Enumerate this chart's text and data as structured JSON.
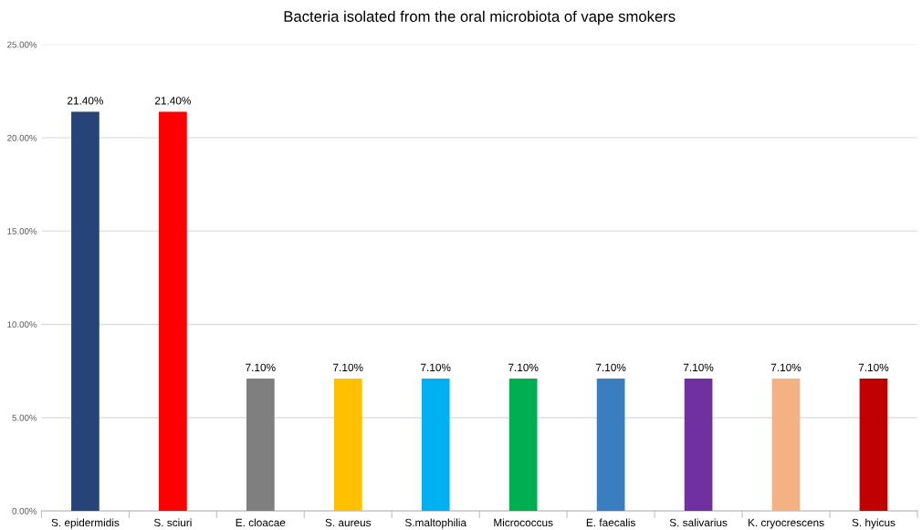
{
  "chart_data": {
    "type": "bar",
    "title": "Bacteria isolated from the oral microbiota of vape smokers",
    "categories": [
      "S. epidermidis",
      "S. sciuri",
      "E. cloacae",
      "S. aureus",
      "S.maltophilia",
      "Micrococcus",
      "E. faecalis",
      "S. salivarius",
      "K. cryocrescens",
      "S. hyicus"
    ],
    "values": [
      21.4,
      21.4,
      7.1,
      7.1,
      7.1,
      7.1,
      7.1,
      7.1,
      7.1,
      7.1
    ],
    "colors": [
      "#264478",
      "#ff0000",
      "#7f7f7f",
      "#ffc000",
      "#00b0f0",
      "#00b050",
      "#3a7ebf",
      "#7030a0",
      "#f4b183",
      "#c00000"
    ],
    "value_labels": [
      "21.40%",
      "21.40%",
      "7.10%",
      "7.10%",
      "7.10%",
      "7.10%",
      "7.10%",
      "7.10%",
      "7.10%",
      "7.10%"
    ],
    "ylim": [
      0,
      25
    ],
    "yticks": [
      {
        "value": 0,
        "label": "0.00%"
      },
      {
        "value": 5,
        "label": "5.00%"
      },
      {
        "value": 10,
        "label": "10.00%"
      },
      {
        "value": 15,
        "label": "15.00%"
      },
      {
        "value": 20,
        "label": "20.00%"
      },
      {
        "value": 25,
        "label": "25.00%"
      }
    ],
    "grid": "y",
    "legend": false
  }
}
